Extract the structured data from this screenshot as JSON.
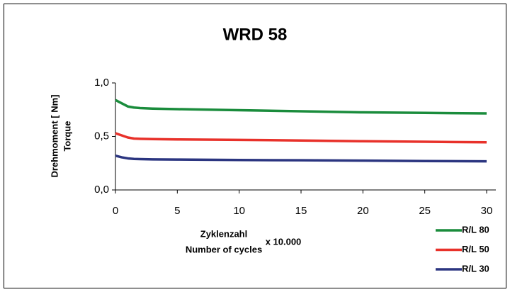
{
  "chart_data": {
    "type": "line",
    "title": "WRD 58",
    "ylabel": [
      "Drehmoment   [ Nm]",
      "Torque"
    ],
    "xlabel": [
      "Zyklenzahl",
      "Number of cycles"
    ],
    "xlabel_unit": "x 10.000",
    "x": [
      0,
      0.5,
      1,
      1.5,
      2,
      3,
      5,
      10,
      15,
      20,
      25,
      30
    ],
    "series": [
      {
        "name": "R/L 80",
        "color": "#1a8c3c",
        "values": [
          0.84,
          0.81,
          0.78,
          0.77,
          0.765,
          0.76,
          0.755,
          0.745,
          0.735,
          0.725,
          0.72,
          0.715
        ]
      },
      {
        "name": "R/L 50",
        "color": "#e8312a",
        "values": [
          0.53,
          0.51,
          0.49,
          0.48,
          0.478,
          0.475,
          0.472,
          0.468,
          0.462,
          0.455,
          0.45,
          0.445
        ]
      },
      {
        "name": "R/L 30",
        "color": "#2b3580",
        "values": [
          0.32,
          0.305,
          0.295,
          0.29,
          0.288,
          0.286,
          0.284,
          0.28,
          0.277,
          0.274,
          0.27,
          0.267
        ]
      }
    ],
    "xlim": [
      0,
      30
    ],
    "xticks": [
      0,
      5,
      10,
      15,
      20,
      25,
      30
    ],
    "ylim": [
      0,
      1
    ],
    "yticks": [
      {
        "value": 0,
        "label": "0,0"
      },
      {
        "value": 0.5,
        "label": "0,5"
      },
      {
        "value": 1,
        "label": "1,0"
      }
    ],
    "grid": false,
    "legend": "bottom-right"
  }
}
